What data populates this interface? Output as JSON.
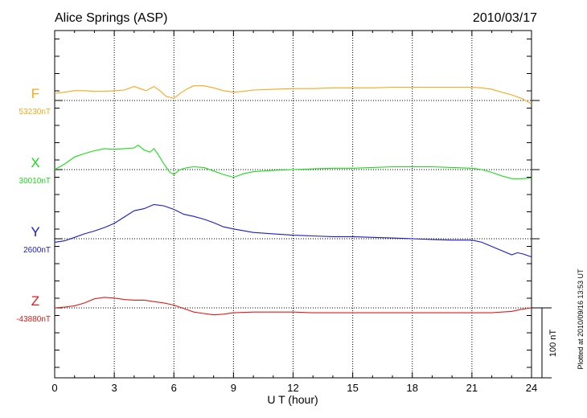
{
  "chart_data": {
    "type": "line",
    "title": "Alice Springs (ASP)",
    "date": "2010/03/17",
    "xlabel": "U T (hour)",
    "xlim": [
      0,
      24
    ],
    "xticks": [
      0,
      3,
      6,
      9,
      12,
      15,
      18,
      21,
      24
    ],
    "xtick_labels": [
      "0",
      "3",
      "6",
      "9",
      "12",
      "15",
      "18",
      "21",
      "24"
    ],
    "grid": "dotted vertical every 3 hours; dotted baseline for each component",
    "scale_bar_label": "100 nT",
    "scale_bar_nT": 100,
    "footnote": "Plotted at 2010/09/16 13:53 UT",
    "series": [
      {
        "name": "F",
        "color": "#f5a81c",
        "baseline_label": "53230nT",
        "baseline_nT": 53230,
        "points": [
          [
            0,
            53240
          ],
          [
            0.5,
            53242
          ],
          [
            1,
            53244
          ],
          [
            1.5,
            53244
          ],
          [
            2,
            53243
          ],
          [
            2.5,
            53243
          ],
          [
            3,
            53244
          ],
          [
            3.5,
            53245
          ],
          [
            4,
            53250
          ],
          [
            4.3,
            53247
          ],
          [
            4.6,
            53244
          ],
          [
            5,
            53250
          ],
          [
            5.3,
            53244
          ],
          [
            5.6,
            53236
          ],
          [
            6,
            53233
          ],
          [
            6.3,
            53240
          ],
          [
            6.7,
            53247
          ],
          [
            7,
            53251
          ],
          [
            7.5,
            53251
          ],
          [
            8,
            53248
          ],
          [
            8.5,
            53244
          ],
          [
            9,
            53242
          ],
          [
            9.5,
            53243
          ],
          [
            10,
            53245
          ],
          [
            11,
            53246
          ],
          [
            12,
            53247
          ],
          [
            13,
            53247
          ],
          [
            14,
            53248
          ],
          [
            15,
            53248
          ],
          [
            16,
            53248
          ],
          [
            17,
            53249
          ],
          [
            18,
            53249
          ],
          [
            19,
            53249
          ],
          [
            20,
            53249
          ],
          [
            21,
            53249
          ],
          [
            21.5,
            53248
          ],
          [
            22,
            53246
          ],
          [
            22.5,
            53242
          ],
          [
            23,
            53238
          ],
          [
            23.5,
            53233
          ],
          [
            24,
            53225
          ]
        ]
      },
      {
        "name": "X",
        "color": "#19dd19",
        "baseline_label": "30010nT",
        "baseline_nT": 30010,
        "points": [
          [
            0,
            30010
          ],
          [
            0.5,
            30018
          ],
          [
            1,
            30028
          ],
          [
            1.5,
            30033
          ],
          [
            2,
            30037
          ],
          [
            2.5,
            30040
          ],
          [
            3,
            30039
          ],
          [
            3.5,
            30040
          ],
          [
            4,
            30041
          ],
          [
            4.2,
            30045
          ],
          [
            4.5,
            30038
          ],
          [
            4.8,
            30035
          ],
          [
            5,
            30040
          ],
          [
            5.2,
            30032
          ],
          [
            5.5,
            30018
          ],
          [
            5.8,
            30006
          ],
          [
            6,
            30003
          ],
          [
            6.3,
            30010
          ],
          [
            6.7,
            30013
          ],
          [
            7,
            30014
          ],
          [
            7.5,
            30013
          ],
          [
            8,
            30008
          ],
          [
            8.5,
            30003
          ],
          [
            9,
            29999
          ],
          [
            9.5,
            30004
          ],
          [
            10,
            30007
          ],
          [
            11,
            30009
          ],
          [
            12,
            30010
          ],
          [
            13,
            30011
          ],
          [
            14,
            30012
          ],
          [
            15,
            30012
          ],
          [
            16,
            30013
          ],
          [
            17,
            30014
          ],
          [
            18,
            30014
          ],
          [
            19,
            30014
          ],
          [
            20,
            30013
          ],
          [
            21,
            30012
          ],
          [
            21.5,
            30010
          ],
          [
            22,
            30006
          ],
          [
            22.5,
            30001
          ],
          [
            23,
            29997
          ],
          [
            23.5,
            29997
          ],
          [
            24,
            29998
          ]
        ]
      },
      {
        "name": "Y",
        "color": "#1a1ad0",
        "baseline_label": "2600nT",
        "baseline_nT": 2600,
        "points": [
          [
            0,
            2595
          ],
          [
            0.5,
            2597
          ],
          [
            1,
            2602
          ],
          [
            1.5,
            2607
          ],
          [
            2,
            2611
          ],
          [
            2.5,
            2616
          ],
          [
            3,
            2622
          ],
          [
            3.5,
            2631
          ],
          [
            4,
            2640
          ],
          [
            4.5,
            2643
          ],
          [
            5,
            2649
          ],
          [
            5.5,
            2647
          ],
          [
            6,
            2642
          ],
          [
            6.5,
            2635
          ],
          [
            7,
            2632
          ],
          [
            7.5,
            2628
          ],
          [
            8,
            2623
          ],
          [
            8.5,
            2617
          ],
          [
            9,
            2614
          ],
          [
            10,
            2609
          ],
          [
            11,
            2607
          ],
          [
            12,
            2605
          ],
          [
            13,
            2604
          ],
          [
            14,
            2603
          ],
          [
            15,
            2603
          ],
          [
            16,
            2602
          ],
          [
            17,
            2601
          ],
          [
            18,
            2600
          ],
          [
            19,
            2599
          ],
          [
            20,
            2598
          ],
          [
            21,
            2598
          ],
          [
            21.5,
            2595
          ],
          [
            22,
            2589
          ],
          [
            22.5,
            2583
          ],
          [
            23,
            2577
          ],
          [
            23.3,
            2580
          ],
          [
            23.6,
            2578
          ],
          [
            24,
            2574
          ]
        ]
      },
      {
        "name": "Z",
        "color": "#e31b1b",
        "baseline_label": "-43880nT",
        "baseline_nT": -43880,
        "points": [
          [
            0,
            -43880
          ],
          [
            0.5,
            -43879
          ],
          [
            1,
            -43877
          ],
          [
            1.5,
            -43873
          ],
          [
            2,
            -43867
          ],
          [
            2.5,
            -43865
          ],
          [
            3,
            -43866
          ],
          [
            3.5,
            -43868
          ],
          [
            4,
            -43869
          ],
          [
            4.5,
            -43869
          ],
          [
            5,
            -43871
          ],
          [
            5.5,
            -43873
          ],
          [
            6,
            -43876
          ],
          [
            6.5,
            -43881
          ],
          [
            7,
            -43886
          ],
          [
            7.5,
            -43888
          ],
          [
            8,
            -43890
          ],
          [
            8.5,
            -43889
          ],
          [
            9,
            -43887
          ],
          [
            10,
            -43886
          ],
          [
            11,
            -43886
          ],
          [
            12,
            -43886
          ],
          [
            13,
            -43887
          ],
          [
            14,
            -43887
          ],
          [
            15,
            -43887
          ],
          [
            16,
            -43887
          ],
          [
            17,
            -43887
          ],
          [
            18,
            -43887
          ],
          [
            19,
            -43887
          ],
          [
            20,
            -43887
          ],
          [
            21,
            -43887
          ],
          [
            22,
            -43887
          ],
          [
            22.5,
            -43886
          ],
          [
            23,
            -43885
          ],
          [
            23.5,
            -43882
          ],
          [
            24,
            -43880
          ]
        ]
      }
    ]
  }
}
